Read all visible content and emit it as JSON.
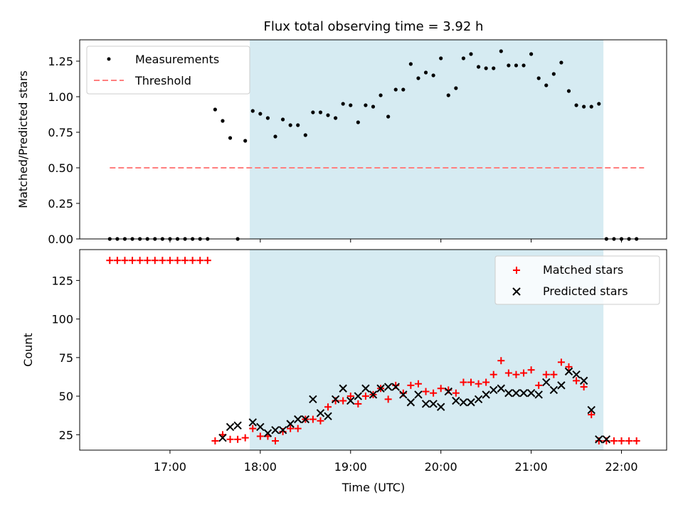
{
  "title": "Flux total observing time = 3.92 h",
  "colors": {
    "shade": "#add8e6",
    "measurement": "#000000",
    "threshold": "#ff7f7f",
    "matched": "#ff0000",
    "predicted": "#000000"
  },
  "chart_data": [
    {
      "type": "scatter",
      "ylabel": "Matched/Predicted stars",
      "ylim": [
        0,
        1.4
      ],
      "yticks": [
        0.0,
        0.25,
        0.5,
        0.75,
        1.0,
        1.25
      ],
      "ytick_labels": [
        "0.00",
        "0.25",
        "0.50",
        "0.75",
        "1.00",
        "1.25"
      ],
      "shaded_span": [
        "17:53",
        "21:48"
      ],
      "legend": {
        "placement": "top-left",
        "entries": [
          "Measurements",
          "Threshold"
        ]
      },
      "threshold": {
        "name": "Threshold",
        "value": 0.5,
        "x_range": [
          "16:20",
          "22:15"
        ]
      },
      "series": [
        {
          "name": "Measurements",
          "x": [
            "16:20",
            "16:25",
            "16:30",
            "16:35",
            "16:40",
            "16:45",
            "16:50",
            "16:55",
            "17:00",
            "17:05",
            "17:10",
            "17:15",
            "17:20",
            "17:25",
            "17:30",
            "17:35",
            "17:40",
            "17:45",
            "17:50",
            "17:55",
            "18:00",
            "18:05",
            "18:10",
            "18:15",
            "18:20",
            "18:25",
            "18:30",
            "18:35",
            "18:40",
            "18:45",
            "18:50",
            "18:55",
            "19:00",
            "19:05",
            "19:10",
            "19:15",
            "19:20",
            "19:25",
            "19:30",
            "19:35",
            "19:40",
            "19:45",
            "19:50",
            "19:55",
            "20:00",
            "20:05",
            "20:10",
            "20:15",
            "20:20",
            "20:25",
            "20:30",
            "20:35",
            "20:40",
            "20:45",
            "20:50",
            "20:55",
            "21:00",
            "21:05",
            "21:10",
            "21:15",
            "21:20",
            "21:25",
            "21:30",
            "21:35",
            "21:40",
            "21:45",
            "21:50",
            "21:55",
            "22:00",
            "22:05",
            "22:10"
          ],
          "y": [
            0,
            0,
            0,
            0,
            0,
            0,
            0,
            0,
            0,
            0,
            0,
            0,
            0,
            0,
            0.91,
            0.83,
            0.71,
            0,
            0.69,
            0.9,
            0.88,
            0.85,
            0.72,
            0.84,
            0.8,
            0.8,
            0.73,
            0.89,
            0.89,
            0.87,
            0.85,
            0.95,
            0.94,
            0.82,
            0.94,
            0.93,
            1.01,
            0.86,
            1.05,
            1.05,
            1.23,
            1.13,
            1.17,
            1.15,
            1.27,
            1.01,
            1.06,
            1.27,
            1.3,
            1.21,
            1.2,
            1.2,
            1.32,
            1.22,
            1.22,
            1.22,
            1.3,
            1.13,
            1.08,
            1.16,
            1.24,
            1.04,
            0.94,
            0.93,
            0.93,
            0.95,
            0,
            0,
            0,
            0,
            0
          ]
        }
      ]
    },
    {
      "type": "scatter",
      "xlabel": "Time (UTC)",
      "ylabel": "Count",
      "ylim": [
        15,
        145
      ],
      "yticks": [
        25,
        50,
        75,
        100,
        125
      ],
      "xticks": [
        "17:00",
        "18:00",
        "19:00",
        "20:00",
        "21:00",
        "22:00"
      ],
      "xlim": [
        "16:00",
        "22:30"
      ],
      "shaded_span": [
        "17:53",
        "21:48"
      ],
      "legend": {
        "placement": "top-right",
        "entries": [
          "Matched stars",
          "Predicted stars"
        ]
      },
      "series": [
        {
          "name": "Matched stars",
          "x": [
            "16:20",
            "16:25",
            "16:30",
            "16:35",
            "16:40",
            "16:45",
            "16:50",
            "16:55",
            "17:00",
            "17:05",
            "17:10",
            "17:15",
            "17:20",
            "17:25",
            "17:30",
            "17:35",
            "17:40",
            "17:45",
            "17:50",
            "17:55",
            "18:00",
            "18:05",
            "18:10",
            "18:15",
            "18:20",
            "18:25",
            "18:30",
            "18:35",
            "18:40",
            "18:45",
            "18:50",
            "18:55",
            "19:00",
            "19:05",
            "19:10",
            "19:15",
            "19:20",
            "19:25",
            "19:30",
            "19:35",
            "19:40",
            "19:45",
            "19:50",
            "19:55",
            "20:00",
            "20:05",
            "20:10",
            "20:15",
            "20:20",
            "20:25",
            "20:30",
            "20:35",
            "20:40",
            "20:45",
            "20:50",
            "20:55",
            "21:00",
            "21:05",
            "21:10",
            "21:15",
            "21:20",
            "21:25",
            "21:30",
            "21:35",
            "21:40",
            "21:45",
            "21:50",
            "21:55",
            "22:00",
            "22:05",
            "22:10"
          ],
          "y": [
            138,
            138,
            138,
            138,
            138,
            138,
            138,
            138,
            138,
            138,
            138,
            138,
            138,
            138,
            21,
            25,
            22,
            22,
            23,
            29,
            24,
            24,
            21,
            27,
            29,
            29,
            35,
            35,
            34,
            43,
            47,
            47,
            50,
            45,
            50,
            51,
            55,
            48,
            57,
            52,
            57,
            58,
            53,
            52,
            55,
            54,
            52,
            59,
            59,
            58,
            59,
            64,
            73,
            65,
            64,
            65,
            67,
            57,
            64,
            64,
            72,
            69,
            60,
            56,
            38,
            21,
            21,
            21,
            21,
            21,
            21
          ]
        },
        {
          "name": "Predicted stars",
          "x": [
            "17:35",
            "17:40",
            "17:45",
            "17:55",
            "18:00",
            "18:05",
            "18:10",
            "18:15",
            "18:20",
            "18:25",
            "18:30",
            "18:35",
            "18:40",
            "18:45",
            "18:50",
            "18:55",
            "19:00",
            "19:05",
            "19:10",
            "19:15",
            "19:20",
            "19:25",
            "19:30",
            "19:35",
            "19:40",
            "19:45",
            "19:50",
            "19:55",
            "20:00",
            "20:05",
            "20:10",
            "20:15",
            "20:20",
            "20:25",
            "20:30",
            "20:35",
            "20:40",
            "20:45",
            "20:50",
            "20:55",
            "21:00",
            "21:05",
            "21:10",
            "21:15",
            "21:20",
            "21:25",
            "21:30",
            "21:35",
            "21:40",
            "21:45",
            "21:50"
          ],
          "y": [
            23,
            30,
            31,
            33,
            30,
            26,
            28,
            28,
            32,
            35,
            35,
            48,
            39,
            37,
            48,
            55,
            47,
            50,
            55,
            51,
            55,
            56,
            56,
            51,
            46,
            51,
            45,
            45,
            43,
            53,
            47,
            46,
            46,
            48,
            51,
            54,
            55,
            52,
            52,
            52,
            52,
            51,
            59,
            54,
            57,
            66,
            64,
            60,
            41,
            22,
            22
          ]
        }
      ]
    }
  ]
}
